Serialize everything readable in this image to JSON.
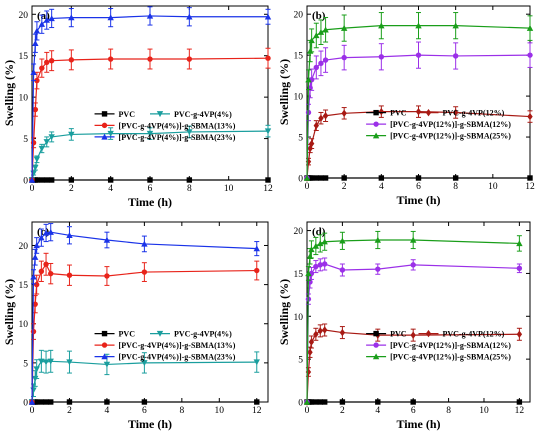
{
  "chart_data": [
    {
      "type": "line",
      "panel_label": "(a)",
      "xlabel": "Time (h)",
      "ylabel": "Swelling (%)",
      "xlim": [
        0,
        12
      ],
      "ylim": [
        0,
        21
      ],
      "xticks": [
        "0",
        "2",
        "4",
        "6",
        "8",
        "10",
        "12"
      ],
      "yticks": [
        "0",
        "5",
        "10",
        "15",
        "20"
      ],
      "legend": {
        "placement": "center-right"
      },
      "x": [
        0,
        0.08,
        0.17,
        0.25,
        0.5,
        0.75,
        1,
        2,
        4,
        6,
        8,
        12
      ],
      "series": [
        {
          "name": "PVC",
          "color": "#000000",
          "marker": "square",
          "values": [
            0,
            0,
            0,
            0,
            0,
            0,
            0,
            0,
            0,
            0,
            0,
            0
          ],
          "errors": [
            0,
            0,
            0,
            0,
            0,
            0,
            0,
            0,
            0,
            0,
            0,
            0
          ]
        },
        {
          "name": "PVC-g-4VP(4%)",
          "color": "#1a9e9e",
          "marker": "triangle-down",
          "values": [
            0,
            0.8,
            1.5,
            2.5,
            3.8,
            4.6,
            5.2,
            5.5,
            5.6,
            5.6,
            5.8,
            5.9
          ],
          "errors": [
            0,
            0.2,
            0.3,
            0.4,
            0.5,
            0.6,
            0.6,
            0.7,
            0.7,
            0.7,
            0.7,
            0.7
          ]
        },
        {
          "name": "[PVC-g-4VP(4%)]-g-SBMA(13%)",
          "color": "#e8231a",
          "marker": "circle",
          "values": [
            0,
            4.5,
            8.5,
            12,
            13.5,
            14.2,
            14.4,
            14.5,
            14.6,
            14.6,
            14.6,
            14.7
          ],
          "errors": [
            0,
            0.6,
            0.8,
            1.0,
            1.1,
            1.2,
            1.2,
            1.2,
            1.2,
            1.2,
            1.2,
            1.2
          ]
        },
        {
          "name": "[PVC-g-4VP(4%)]-g-SBMA(23%)",
          "color": "#1a33e8",
          "marker": "triangle-up",
          "values": [
            0,
            13,
            16.5,
            18,
            18.8,
            19.3,
            19.5,
            19.6,
            19.6,
            19.8,
            19.7,
            19.7
          ],
          "errors": [
            0,
            1.0,
            1.1,
            1.1,
            1.1,
            1.1,
            1.1,
            1.1,
            1.1,
            1.1,
            1.1,
            0.9
          ]
        }
      ]
    },
    {
      "type": "line",
      "panel_label": "(b)",
      "xlabel": "Time (h)",
      "ylabel": "Swelling (%)",
      "xlim": [
        0,
        12
      ],
      "ylim": [
        0,
        21
      ],
      "xticks": [
        "0",
        "2",
        "4",
        "6",
        "8",
        "10",
        "12"
      ],
      "yticks": [
        "0",
        "5",
        "10",
        "15",
        "20"
      ],
      "legend": {
        "placement": "center-right"
      },
      "x": [
        0,
        0.08,
        0.17,
        0.25,
        0.5,
        0.75,
        1,
        2,
        4,
        6,
        8,
        12
      ],
      "series": [
        {
          "name": "PVC",
          "color": "#000000",
          "marker": "square",
          "values": [
            0,
            0,
            0,
            0,
            0,
            0,
            0,
            0,
            0,
            0,
            0,
            0
          ],
          "errors": [
            0,
            0,
            0,
            0,
            0,
            0,
            0,
            0,
            0,
            0,
            0,
            0
          ]
        },
        {
          "name": "PVC-g-4VP(12%)",
          "color": "#a81a14",
          "marker": "diamond",
          "values": [
            0,
            2,
            3.6,
            4.2,
            6.4,
            7.3,
            7.6,
            7.9,
            8.1,
            8.1,
            8.0,
            7.5
          ],
          "errors": [
            0,
            0.4,
            0.5,
            0.6,
            0.6,
            0.7,
            0.7,
            0.7,
            0.7,
            0.7,
            0.7,
            0.7
          ]
        },
        {
          "name": "[PVC-g-4VP(12%)]-g-SBMA(12%)",
          "color": "#9b30e8",
          "marker": "circle",
          "values": [
            0,
            8,
            11,
            12,
            13.5,
            14,
            14.4,
            14.7,
            14.8,
            15,
            14.9,
            15
          ],
          "errors": [
            0,
            1.0,
            1.2,
            1.3,
            1.4,
            1.5,
            1.5,
            1.5,
            1.6,
            1.6,
            1.6,
            1.5
          ]
        },
        {
          "name": "[PVC-g-4VP(12%)]-g-SBMA(25%)",
          "color": "#1a9e1a",
          "marker": "triangle-up",
          "values": [
            0,
            12,
            15.5,
            16.8,
            17.4,
            17.8,
            18.1,
            18.3,
            18.6,
            18.6,
            18.6,
            18.3
          ],
          "errors": [
            0,
            1.2,
            1.3,
            1.4,
            1.5,
            1.5,
            1.5,
            1.6,
            1.6,
            1.6,
            1.6,
            1.5
          ]
        }
      ]
    },
    {
      "type": "line",
      "panel_label": "(c)",
      "xlabel": "Time (h)",
      "ylabel": "Swelling (%)",
      "xlim": [
        0,
        12.6
      ],
      "ylim": [
        0,
        23
      ],
      "xticks": [
        "0",
        "2",
        "4",
        "6",
        "8",
        "10",
        "12"
      ],
      "yticks": [
        "0",
        "5",
        "10",
        "15",
        "20"
      ],
      "legend": {
        "placement": "center-right"
      },
      "x": [
        0,
        0.08,
        0.17,
        0.25,
        0.5,
        0.75,
        1,
        2,
        4,
        6,
        12
      ],
      "series": [
        {
          "name": "PVC",
          "color": "#000000",
          "marker": "square",
          "values": [
            0,
            0,
            0,
            0,
            0,
            0,
            0,
            0,
            0,
            0,
            0
          ],
          "errors": [
            0,
            0,
            0,
            0,
            0,
            0,
            0,
            0,
            0,
            0,
            0
          ]
        },
        {
          "name": "PVC-g-4VP(4%)",
          "color": "#1a9e9e",
          "marker": "triangle-down",
          "values": [
            0,
            1.5,
            3,
            4.2,
            5.2,
            5.1,
            5.2,
            5.1,
            4.8,
            5,
            5.1
          ],
          "errors": [
            0,
            0.8,
            1.0,
            1.2,
            1.4,
            1.4,
            1.4,
            1.4,
            1.3,
            1.3,
            1.3
          ]
        },
        {
          "name": "[PVC-g-4VP(4%)]-g-SBMA(13%)",
          "color": "#e8231a",
          "marker": "circle",
          "values": [
            0,
            9,
            12.5,
            15,
            16.7,
            17.6,
            16.4,
            16.2,
            16.1,
            16.6,
            16.8
          ],
          "errors": [
            0,
            1.0,
            1.1,
            1.2,
            1.3,
            1.4,
            1.3,
            1.3,
            1.2,
            1.2,
            1.2
          ]
        },
        {
          "name": "[PVC-g-4VP(4%)]-g-SBMA(23%)",
          "color": "#1a33e8",
          "marker": "triangle-up",
          "values": [
            0,
            16,
            18.5,
            20,
            21,
            21.6,
            21.7,
            21.3,
            20.7,
            20.2,
            19.6
          ],
          "errors": [
            0,
            0.9,
            1.0,
            1.0,
            1.1,
            1.1,
            1.1,
            1.1,
            1.0,
            1.0,
            0.9
          ]
        }
      ]
    },
    {
      "type": "line",
      "panel_label": "(d)",
      "xlabel": "Time (h)",
      "ylabel": "Swelling (%)",
      "xlim": [
        0,
        12.6
      ],
      "ylim": [
        0,
        21
      ],
      "xticks": [
        "0",
        "2",
        "4",
        "6",
        "8",
        "10",
        "12"
      ],
      "yticks": [
        "0",
        "5",
        "10",
        "15",
        "20"
      ],
      "legend": {
        "placement": "center-right"
      },
      "x": [
        0,
        0.08,
        0.17,
        0.25,
        0.5,
        0.75,
        1,
        2,
        4,
        6,
        12
      ],
      "series": [
        {
          "name": "PVC",
          "color": "#000000",
          "marker": "square",
          "values": [
            0,
            0,
            0,
            0,
            0,
            0,
            0,
            0,
            0,
            0,
            0
          ],
          "errors": [
            0,
            0,
            0,
            0,
            0,
            0,
            0,
            0,
            0,
            0,
            0
          ]
        },
        {
          "name": "PVC-g-4VP(12%)",
          "color": "#a81a14",
          "marker": "diamond",
          "values": [
            0,
            3.5,
            5.8,
            7,
            7.9,
            8.3,
            8.4,
            8.1,
            7.8,
            7.8,
            7.9
          ],
          "errors": [
            0,
            0.5,
            0.6,
            0.7,
            0.7,
            0.7,
            0.7,
            0.7,
            0.7,
            0.7,
            0.7
          ]
        },
        {
          "name": "[PVC-g-4VP(12%)]-g-SBMA(12%)",
          "color": "#9b30e8",
          "marker": "circle",
          "values": [
            0,
            12,
            14,
            15,
            15.8,
            16,
            16.1,
            15.4,
            15.5,
            16,
            15.6
          ],
          "errors": [
            0,
            0.6,
            0.7,
            0.7,
            0.7,
            0.7,
            0.7,
            0.7,
            0.6,
            0.6,
            0.5
          ]
        },
        {
          "name": "[PVC-g-4VP(12%)]-g-SBMA(25%)",
          "color": "#1a9e1a",
          "marker": "triangle-up",
          "values": [
            0,
            15,
            17,
            17.8,
            18.2,
            18.5,
            18.7,
            18.8,
            18.9,
            18.9,
            18.5
          ],
          "errors": [
            0,
            0.8,
            0.9,
            1.0,
            1.0,
            1.0,
            1.0,
            1.0,
            1.0,
            1.0,
            0.9
          ]
        }
      ]
    }
  ]
}
